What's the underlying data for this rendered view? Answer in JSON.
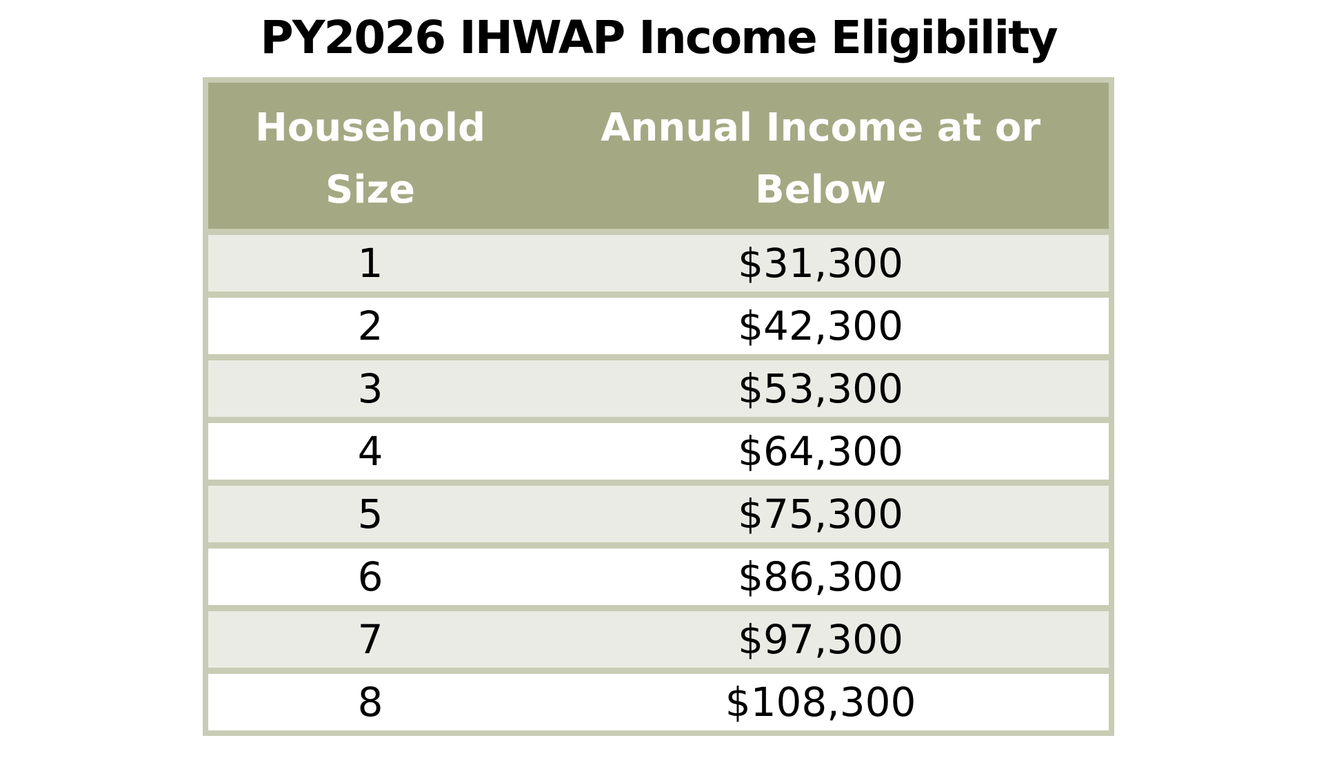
{
  "title": "PY2026 IHWAP Income Eligibility",
  "table": {
    "header": {
      "col1": "Household Size",
      "col2": "Annual Income at or Below"
    },
    "rows": [
      {
        "size": "1",
        "income": "$31,300"
      },
      {
        "size": "2",
        "income": "$42,300"
      },
      {
        "size": "3",
        "income": "$53,300"
      },
      {
        "size": "4",
        "income": "$64,300"
      },
      {
        "size": "5",
        "income": "$75,300"
      },
      {
        "size": "6",
        "income": "$86,300"
      },
      {
        "size": "7",
        "income": "$97,300"
      },
      {
        "size": "8",
        "income": "$108,300"
      }
    ]
  },
  "colors": {
    "header_bg": "#a5a983",
    "table_border": "#c9ccb4",
    "row_alt_bg": "#eaebe4",
    "row_bg": "#ffffff",
    "header_text": "#ffffff",
    "body_text": "#000000"
  },
  "chart_data": {
    "type": "table",
    "title": "PY2026 IHWAP Income Eligibility",
    "columns": [
      "Household Size",
      "Annual Income at or Below"
    ],
    "rows": [
      [
        1,
        31300
      ],
      [
        2,
        42300
      ],
      [
        3,
        53300
      ],
      [
        4,
        64300
      ],
      [
        5,
        75300
      ],
      [
        6,
        86300
      ],
      [
        7,
        97300
      ],
      [
        8,
        108300
      ]
    ]
  }
}
